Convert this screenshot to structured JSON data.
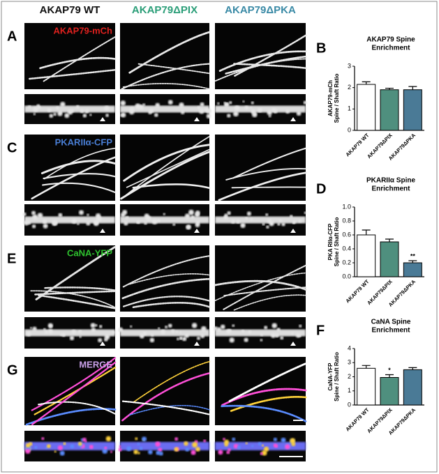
{
  "figure": {
    "columns": [
      {
        "text": "AKAP79 WT",
        "color": "#111111"
      },
      {
        "text": "AKAP79ΔPIX",
        "color": "#2b9e78"
      },
      {
        "text": "AKAP79ΔPKA",
        "color": "#3a8aa6"
      }
    ],
    "panels": [
      {
        "letter": "A",
        "label": "AKAP79-mCh",
        "color": "#e0211e",
        "tint": "#e8e8e8"
      },
      {
        "letter": "C",
        "label": "PKARIIα-CFP",
        "color": "#4a7fd6",
        "tint": "#eeeeee"
      },
      {
        "letter": "E",
        "label": "CaNA-YFP",
        "color": "#2fc32f",
        "tint": "#e4e4e4"
      },
      {
        "letter": "G",
        "label": "MERGE",
        "color": "#c8a0e8",
        "tint": "merge"
      }
    ]
  },
  "chart_data": [
    {
      "type": "bar",
      "panel": "B",
      "title": [
        "AKAP79 Spine",
        "Enrichment"
      ],
      "ylabel": [
        "AKAP79-mCh",
        "Spine / Shaft Ratio"
      ],
      "categories": [
        "AKAP79 WT",
        "AKAP79ΔPIX",
        "AKAP79ΔPKA"
      ],
      "values": [
        2.15,
        1.9,
        1.9
      ],
      "errors": [
        0.12,
        0.07,
        0.15
      ],
      "colors": [
        "#ffffff",
        "#4f8f7e",
        "#4a7a96"
      ],
      "bar_labels": [
        null,
        null,
        null
      ],
      "ylim": [
        0,
        3
      ],
      "yticks": [
        0,
        1,
        2,
        3
      ]
    },
    {
      "type": "bar",
      "panel": "D",
      "title": [
        "PKARIIα Spine",
        "Enrichment"
      ],
      "ylabel": [
        "PKA RIIα-CFP",
        "Spine / Shaft Ratio"
      ],
      "categories": [
        "AKAP79 WT",
        "AKAP79ΔPIX",
        "AKAP79ΔPKA"
      ],
      "values": [
        0.6,
        0.5,
        0.2
      ],
      "errors": [
        0.07,
        0.04,
        0.03
      ],
      "colors": [
        "#ffffff",
        "#4f8f7e",
        "#4a7a96"
      ],
      "bar_labels": [
        null,
        null,
        "**"
      ],
      "ylim": [
        0,
        1
      ],
      "yticks": [
        {
          "value": 0,
          "label": "0.0"
        },
        0.2,
        0.4,
        0.6,
        0.8,
        {
          "value": 1,
          "label": "1.0"
        }
      ]
    },
    {
      "type": "bar",
      "panel": "F",
      "title": [
        "CaNA Spine",
        "Enrichment"
      ],
      "ylabel": [
        "CaNA-YFP",
        "Spine / Shaft Ratio"
      ],
      "categories": [
        "AKAP79 WT",
        "AKAP79ΔPIX",
        "AKAP79ΔPKA"
      ],
      "values": [
        2.6,
        1.95,
        2.5
      ],
      "errors": [
        0.2,
        0.2,
        0.15
      ],
      "colors": [
        "#ffffff",
        "#4f8f7e",
        "#4a7a96"
      ],
      "bar_labels": [
        null,
        "*",
        null
      ],
      "ylim": [
        0,
        4
      ],
      "yticks": [
        0,
        1,
        2,
        3,
        4
      ]
    }
  ]
}
